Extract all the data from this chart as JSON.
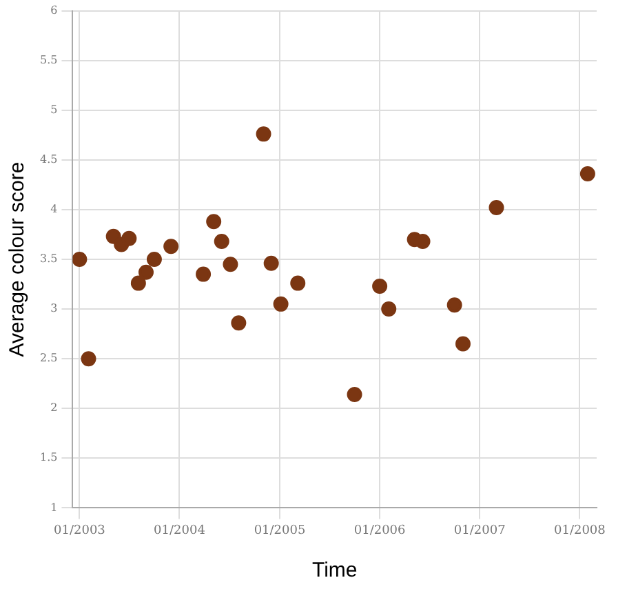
{
  "chart_data": {
    "type": "scatter",
    "xlabel": "Time",
    "ylabel": "Average colour score",
    "x": [
      "2003-01-01",
      "2003-02-03",
      "2003-05-05",
      "2003-06-03",
      "2003-07-01",
      "2003-08-04",
      "2003-09-01",
      "2003-10-01",
      "2003-12-01",
      "2004-03-28",
      "2004-05-05",
      "2004-06-03",
      "2004-07-05",
      "2004-08-04",
      "2004-11-03",
      "2004-12-01",
      "2005-01-05",
      "2005-03-08",
      "2005-10-01",
      "2006-01-01",
      "2006-02-03",
      "2006-05-08",
      "2006-06-07",
      "2006-10-01",
      "2006-11-01",
      "2007-03-03",
      "2008-01-30"
    ],
    "series": [
      {
        "color": "#7b3612",
        "values": [
          3.5,
          2.5,
          3.73,
          3.65,
          3.71,
          3.26,
          3.37,
          3.5,
          3.63,
          3.35,
          3.88,
          3.68,
          3.45,
          2.86,
          4.76,
          3.46,
          3.05,
          3.26,
          2.14,
          3.23,
          3.0,
          3.7,
          3.68,
          3.04,
          2.65,
          4.02,
          4.36
        ]
      }
    ],
    "xlim": [
      "2002-12-07",
      "2008-03-03"
    ],
    "xticks": [
      {
        "value": "2003-01-01",
        "label": "01/2003"
      },
      {
        "value": "2004-01-01",
        "label": "01/2004"
      },
      {
        "value": "2005-01-01",
        "label": "01/2005"
      },
      {
        "value": "2006-01-01",
        "label": "01/2006"
      },
      {
        "value": "2007-01-01",
        "label": "01/2007"
      },
      {
        "value": "2008-01-01",
        "label": "01/2008"
      }
    ],
    "ylim": [
      1,
      6
    ],
    "yticks": [
      1,
      1.5,
      2,
      2.5,
      3,
      3.5,
      4,
      4.5,
      5,
      5.5,
      6
    ],
    "grid": true,
    "legend": false,
    "marker": "circle"
  }
}
